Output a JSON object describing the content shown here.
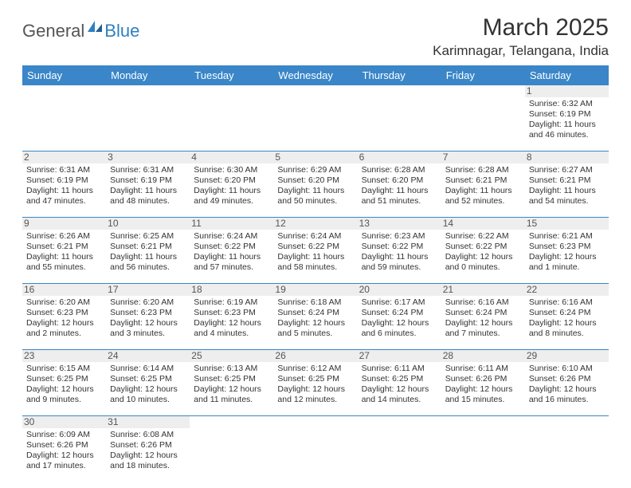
{
  "brand": {
    "part1": "General",
    "part2": "Blue"
  },
  "title": "March 2025",
  "location": "Karimnagar, Telangana, India",
  "colors": {
    "header_bg": "#3a86c8",
    "header_text": "#ffffff",
    "rule": "#3a86c8",
    "daynum_bg": "#eeeeee",
    "logo_gray": "#555555",
    "logo_blue": "#2f7fbf"
  },
  "weekdays": [
    "Sunday",
    "Monday",
    "Tuesday",
    "Wednesday",
    "Thursday",
    "Friday",
    "Saturday"
  ],
  "weeks": [
    [
      null,
      null,
      null,
      null,
      null,
      null,
      {
        "n": "1",
        "sunrise": "Sunrise: 6:32 AM",
        "sunset": "Sunset: 6:19 PM",
        "daylight": "Daylight: 11 hours and 46 minutes."
      }
    ],
    [
      {
        "n": "2",
        "sunrise": "Sunrise: 6:31 AM",
        "sunset": "Sunset: 6:19 PM",
        "daylight": "Daylight: 11 hours and 47 minutes."
      },
      {
        "n": "3",
        "sunrise": "Sunrise: 6:31 AM",
        "sunset": "Sunset: 6:19 PM",
        "daylight": "Daylight: 11 hours and 48 minutes."
      },
      {
        "n": "4",
        "sunrise": "Sunrise: 6:30 AM",
        "sunset": "Sunset: 6:20 PM",
        "daylight": "Daylight: 11 hours and 49 minutes."
      },
      {
        "n": "5",
        "sunrise": "Sunrise: 6:29 AM",
        "sunset": "Sunset: 6:20 PM",
        "daylight": "Daylight: 11 hours and 50 minutes."
      },
      {
        "n": "6",
        "sunrise": "Sunrise: 6:28 AM",
        "sunset": "Sunset: 6:20 PM",
        "daylight": "Daylight: 11 hours and 51 minutes."
      },
      {
        "n": "7",
        "sunrise": "Sunrise: 6:28 AM",
        "sunset": "Sunset: 6:21 PM",
        "daylight": "Daylight: 11 hours and 52 minutes."
      },
      {
        "n": "8",
        "sunrise": "Sunrise: 6:27 AM",
        "sunset": "Sunset: 6:21 PM",
        "daylight": "Daylight: 11 hours and 54 minutes."
      }
    ],
    [
      {
        "n": "9",
        "sunrise": "Sunrise: 6:26 AM",
        "sunset": "Sunset: 6:21 PM",
        "daylight": "Daylight: 11 hours and 55 minutes."
      },
      {
        "n": "10",
        "sunrise": "Sunrise: 6:25 AM",
        "sunset": "Sunset: 6:21 PM",
        "daylight": "Daylight: 11 hours and 56 minutes."
      },
      {
        "n": "11",
        "sunrise": "Sunrise: 6:24 AM",
        "sunset": "Sunset: 6:22 PM",
        "daylight": "Daylight: 11 hours and 57 minutes."
      },
      {
        "n": "12",
        "sunrise": "Sunrise: 6:24 AM",
        "sunset": "Sunset: 6:22 PM",
        "daylight": "Daylight: 11 hours and 58 minutes."
      },
      {
        "n": "13",
        "sunrise": "Sunrise: 6:23 AM",
        "sunset": "Sunset: 6:22 PM",
        "daylight": "Daylight: 11 hours and 59 minutes."
      },
      {
        "n": "14",
        "sunrise": "Sunrise: 6:22 AM",
        "sunset": "Sunset: 6:22 PM",
        "daylight": "Daylight: 12 hours and 0 minutes."
      },
      {
        "n": "15",
        "sunrise": "Sunrise: 6:21 AM",
        "sunset": "Sunset: 6:23 PM",
        "daylight": "Daylight: 12 hours and 1 minute."
      }
    ],
    [
      {
        "n": "16",
        "sunrise": "Sunrise: 6:20 AM",
        "sunset": "Sunset: 6:23 PM",
        "daylight": "Daylight: 12 hours and 2 minutes."
      },
      {
        "n": "17",
        "sunrise": "Sunrise: 6:20 AM",
        "sunset": "Sunset: 6:23 PM",
        "daylight": "Daylight: 12 hours and 3 minutes."
      },
      {
        "n": "18",
        "sunrise": "Sunrise: 6:19 AM",
        "sunset": "Sunset: 6:23 PM",
        "daylight": "Daylight: 12 hours and 4 minutes."
      },
      {
        "n": "19",
        "sunrise": "Sunrise: 6:18 AM",
        "sunset": "Sunset: 6:24 PM",
        "daylight": "Daylight: 12 hours and 5 minutes."
      },
      {
        "n": "20",
        "sunrise": "Sunrise: 6:17 AM",
        "sunset": "Sunset: 6:24 PM",
        "daylight": "Daylight: 12 hours and 6 minutes."
      },
      {
        "n": "21",
        "sunrise": "Sunrise: 6:16 AM",
        "sunset": "Sunset: 6:24 PM",
        "daylight": "Daylight: 12 hours and 7 minutes."
      },
      {
        "n": "22",
        "sunrise": "Sunrise: 6:16 AM",
        "sunset": "Sunset: 6:24 PM",
        "daylight": "Daylight: 12 hours and 8 minutes."
      }
    ],
    [
      {
        "n": "23",
        "sunrise": "Sunrise: 6:15 AM",
        "sunset": "Sunset: 6:25 PM",
        "daylight": "Daylight: 12 hours and 9 minutes."
      },
      {
        "n": "24",
        "sunrise": "Sunrise: 6:14 AM",
        "sunset": "Sunset: 6:25 PM",
        "daylight": "Daylight: 12 hours and 10 minutes."
      },
      {
        "n": "25",
        "sunrise": "Sunrise: 6:13 AM",
        "sunset": "Sunset: 6:25 PM",
        "daylight": "Daylight: 12 hours and 11 minutes."
      },
      {
        "n": "26",
        "sunrise": "Sunrise: 6:12 AM",
        "sunset": "Sunset: 6:25 PM",
        "daylight": "Daylight: 12 hours and 12 minutes."
      },
      {
        "n": "27",
        "sunrise": "Sunrise: 6:11 AM",
        "sunset": "Sunset: 6:25 PM",
        "daylight": "Daylight: 12 hours and 14 minutes."
      },
      {
        "n": "28",
        "sunrise": "Sunrise: 6:11 AM",
        "sunset": "Sunset: 6:26 PM",
        "daylight": "Daylight: 12 hours and 15 minutes."
      },
      {
        "n": "29",
        "sunrise": "Sunrise: 6:10 AM",
        "sunset": "Sunset: 6:26 PM",
        "daylight": "Daylight: 12 hours and 16 minutes."
      }
    ],
    [
      {
        "n": "30",
        "sunrise": "Sunrise: 6:09 AM",
        "sunset": "Sunset: 6:26 PM",
        "daylight": "Daylight: 12 hours and 17 minutes."
      },
      {
        "n": "31",
        "sunrise": "Sunrise: 6:08 AM",
        "sunset": "Sunset: 6:26 PM",
        "daylight": "Daylight: 12 hours and 18 minutes."
      },
      null,
      null,
      null,
      null,
      null
    ]
  ]
}
